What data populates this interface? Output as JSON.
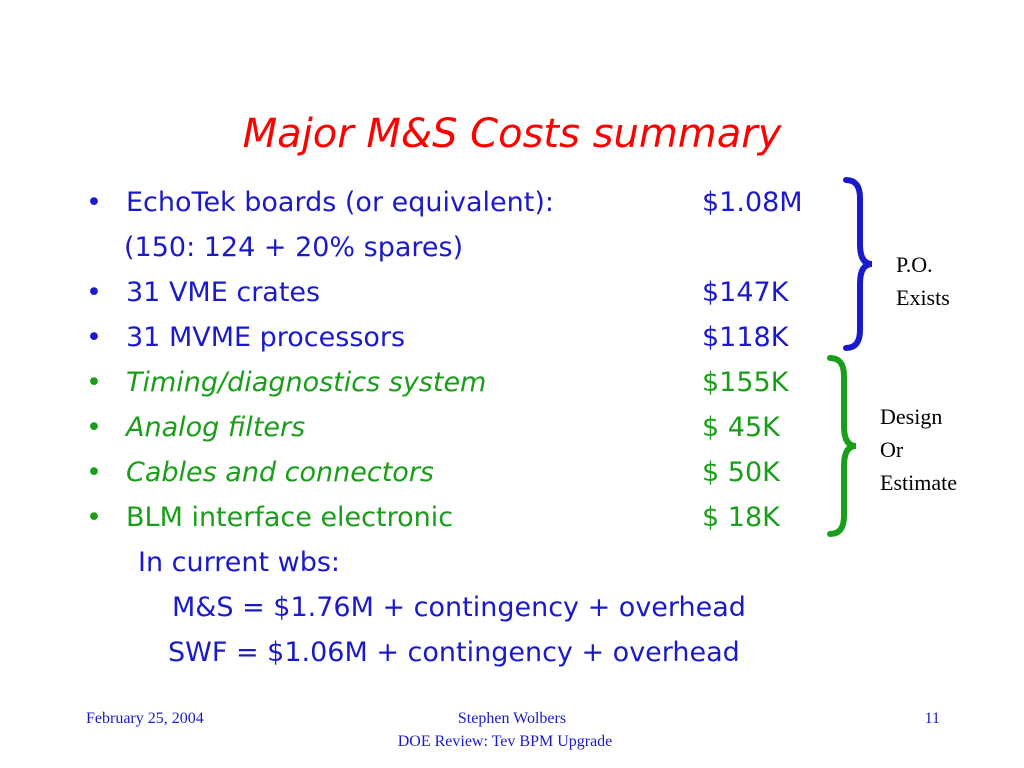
{
  "title": "Major M&S Costs summary",
  "items": [
    {
      "label": "EchoTek boards (or equivalent):",
      "value": "$1.08M",
      "color": "#1a1acc"
    },
    {
      "label": "31 VME crates",
      "value": "$147K",
      "color": "#1a1acc"
    },
    {
      "label": "31 MVME processors",
      "value": "$118K",
      "color": "#1a1acc"
    },
    {
      "label": "Timing/diagnostics system",
      "value": "$155K",
      "color": "#1a9e1a"
    },
    {
      "label": "Analog filters",
      "value": "$ 45K",
      "color": "#1a9e1a"
    },
    {
      "label": "Cables and connectors",
      "value": "$ 50K",
      "color": "#1a9e1a"
    },
    {
      "label": "BLM interface electronic",
      "value": "$ 18K",
      "color": "#1a9e1a"
    }
  ],
  "bullet_char": "•",
  "echotek_note": "(150: 124 + 20% spares)",
  "wbs": {
    "heading": "In current wbs:",
    "ms_line": "M&S = $1.76M + contingency + overhead",
    "swf_line": "SWF = $1.06M + contingency + overhead"
  },
  "brace_notes": {
    "po": [
      "P.O.",
      "Exists"
    ],
    "design": [
      "Design",
      "Or",
      "Estimate"
    ]
  },
  "footer": {
    "date": "February 25, 2004",
    "author": "Stephen Wolbers",
    "event": "DOE Review: Tev BPM Upgrade",
    "page_number": "11"
  },
  "colors": {
    "title": "#ff0000",
    "blue_text": "#1a1acc",
    "green_text": "#1a9e1a",
    "brace_blue": "#1a1acc",
    "brace_green": "#1a9e1a"
  }
}
